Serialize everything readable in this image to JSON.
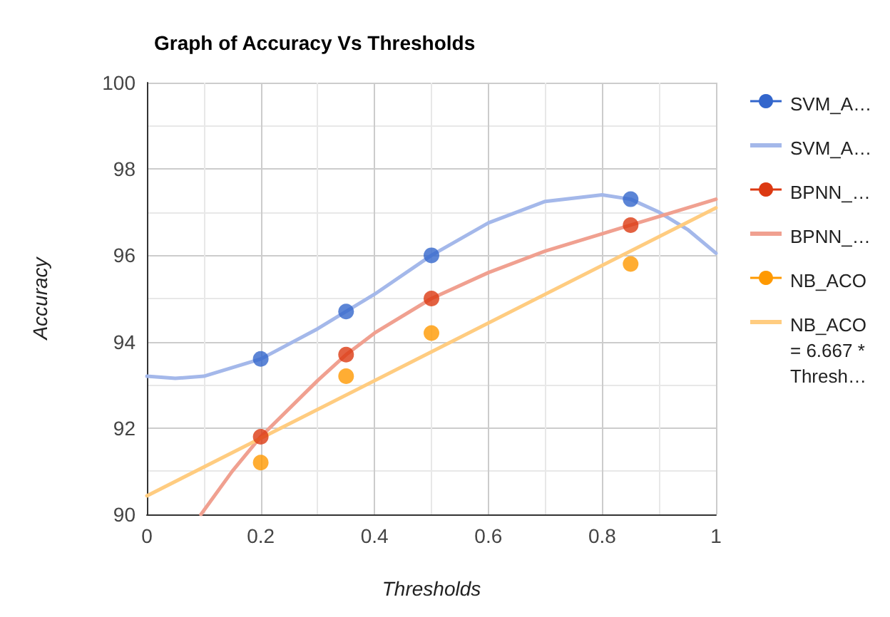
{
  "chart_data": {
    "type": "scatter",
    "title": "Graph of Accuracy Vs Thresholds",
    "xlabel": "Thresholds",
    "ylabel": "Accuracy",
    "x": [
      0.2,
      0.35,
      0.5,
      0.85
    ],
    "series": [
      {
        "name": "SVM_A…",
        "color": "#3366cc",
        "marker": "circle",
        "values": [
          93.6,
          94.7,
          96.0,
          97.3
        ]
      },
      {
        "name": "SVM_A…",
        "type": "line",
        "color": "#a4b8ea",
        "marker": "none",
        "x": [
          0,
          0.05,
          0.1,
          0.2,
          0.3,
          0.35,
          0.4,
          0.5,
          0.6,
          0.7,
          0.8,
          0.85,
          0.9,
          0.95,
          1.0
        ],
        "values": [
          93.2,
          93.15,
          93.2,
          93.6,
          94.3,
          94.7,
          95.1,
          96.0,
          96.75,
          97.25,
          97.4,
          97.3,
          97.0,
          96.6,
          96.05
        ]
      },
      {
        "name": "BPNN_…",
        "color": "#dc3912",
        "marker": "circle",
        "values": [
          91.8,
          93.7,
          95.0,
          96.7
        ]
      },
      {
        "name": "BPNN_…",
        "type": "line",
        "color": "#f0a090",
        "marker": "none",
        "x": [
          0.095,
          0.15,
          0.2,
          0.3,
          0.35,
          0.4,
          0.5,
          0.6,
          0.7,
          0.8,
          0.85,
          0.9,
          1.0
        ],
        "values": [
          90.0,
          91.0,
          91.8,
          93.1,
          93.7,
          94.2,
          95.0,
          95.6,
          96.1,
          96.5,
          96.7,
          96.9,
          97.3
        ]
      },
      {
        "name": "NB_ACO",
        "color": "#ff9900",
        "marker": "circle",
        "values": [
          91.2,
          93.2,
          94.2,
          95.8
        ]
      },
      {
        "name": "NB_ACO = 6.667 * Thresh…",
        "type": "line",
        "color": "#ffcc80",
        "marker": "none",
        "x": [
          0,
          1
        ],
        "values": [
          90.43,
          97.1
        ]
      }
    ],
    "xlim": [
      0,
      1
    ],
    "xticks": [
      0,
      0.2,
      0.4,
      0.6,
      0.8,
      1
    ],
    "ylim": [
      90,
      100
    ],
    "yticks": [
      90,
      92,
      94,
      96,
      98,
      100
    ],
    "grid": true,
    "legend": "right"
  }
}
